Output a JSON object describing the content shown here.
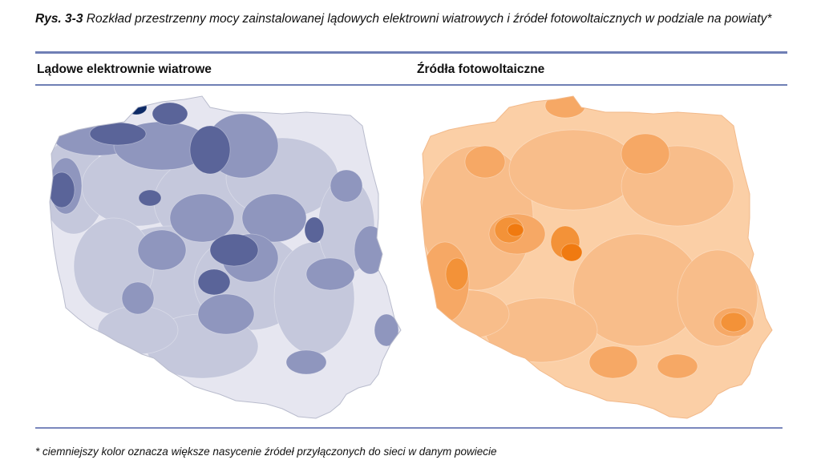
{
  "caption": {
    "figure_label": "Rys. 3-3",
    "text": "Rozkład przestrzenny mocy zainstalowanej lądowych elektrowni wiatrowych i źródeł fotowoltaicznych w podziale na powiaty*"
  },
  "panels": [
    {
      "title": "Lądowe elektrownie wiatrowe",
      "colors": {
        "base": "#e6e6f0",
        "low": "#c5c8dc",
        "mid": "#8f96be",
        "high": "#5a6499",
        "max": "#0d2a66"
      }
    },
    {
      "title": "Źródła fotowoltaiczne",
      "colors": {
        "base": "#fbcfa6",
        "low": "#f8bd8a",
        "mid": "#f6a865",
        "high": "#f39238",
        "max": "#f07a10"
      }
    }
  ],
  "footnote": "* ciemniejszy kolor oznacza większe nasycenie źródeł przyłączonych do sieci w danym powiecie"
}
